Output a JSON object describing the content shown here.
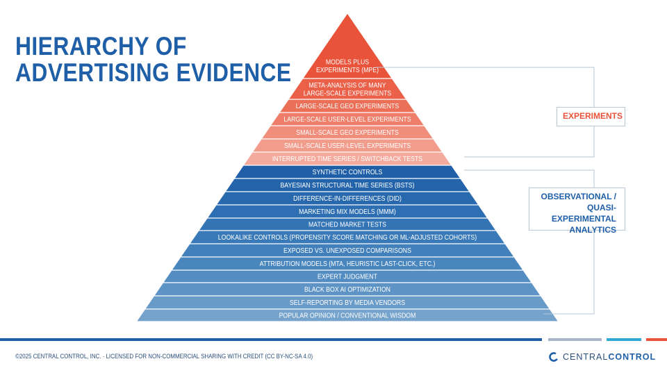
{
  "title": {
    "line1": "HIERARCHY OF",
    "line2": "ADVERTISING EVIDENCE"
  },
  "pyramid": {
    "levels": [
      {
        "label": "MODELS PLUS|EXPERIMENTS (MPE)",
        "color": "#e8533a",
        "group": "experiments"
      },
      {
        "label": "META-ANALYSIS OF MANY|LARGE-SCALE EXPERIMENTS",
        "color": "#ea6048",
        "group": "experiments"
      },
      {
        "label": "LARGE-SCALE GEO EXPERIMENTS",
        "color": "#ec6f58",
        "group": "experiments"
      },
      {
        "label": "LARGE-SCALE USER-LEVEL EXPERIMENTS",
        "color": "#ee7e69",
        "group": "experiments"
      },
      {
        "label": "SMALL-SCALE GEO EXPERIMENTS",
        "color": "#f08d7b",
        "group": "experiments"
      },
      {
        "label": "SMALL-SCALE USER-LEVEL EXPERIMENTS",
        "color": "#f29c8c",
        "group": "experiments"
      },
      {
        "label": "INTERRUPTED TIME SERIES / SWITCHBACK TESTS",
        "color": "#f4ab9e",
        "group": "experiments"
      },
      {
        "label": "SYNTHETIC CONTROLS",
        "color": "#1f5fa8",
        "group": "observational"
      },
      {
        "label": "BAYESIAN STRUCTURAL TIME SERIES (BSTS)",
        "color": "#2364ab",
        "group": "observational"
      },
      {
        "label": "DIFFERENCE-IN-DIFFERENCES (DID)",
        "color": "#2869ae",
        "group": "observational"
      },
      {
        "label": "MARKETING MIX MODELS (MMM)",
        "color": "#2d6fb2",
        "group": "observational"
      },
      {
        "label": "MATCHED MARKET TESTS",
        "color": "#3374b5",
        "group": "observational"
      },
      {
        "label": "LOOKALIKE CONTROLS (PROPENSITY SCORE MATCHING OR ML-ADJUSTED COHORTS)",
        "color": "#3a7ab8",
        "group": "observational"
      },
      {
        "label": "EXPOSED VS. UNEXPOSED COMPARISONS",
        "color": "#4280bb",
        "group": "observational"
      },
      {
        "label": "ATTRIBUTION MODELS (MTA, HEURISTIC LAST-CLICK, ETC.)",
        "color": "#4a86be",
        "group": "observational"
      },
      {
        "label": "EXPERT JUDGMENT",
        "color": "#548dc2",
        "group": "observational"
      },
      {
        "label": "BLACK BOX AI OPTIMIZATION",
        "color": "#5e94c5",
        "group": "observational"
      },
      {
        "label": "SELF-REPORTING BY MEDIA VENDORS",
        "color": "#699bc8",
        "group": "observational"
      },
      {
        "label": "POPULAR OPINION / CONVENTIONAL WISDOM",
        "color": "#75a3cc",
        "group": "observational"
      }
    ]
  },
  "groups": {
    "experiments": {
      "label": "EXPERIMENTS",
      "color": "#e8533a"
    },
    "observational": {
      "line1": "OBSERVATIONAL /",
      "line2": "QUASI-EXPERIMENTAL",
      "line3": "ANALYTICS",
      "color": "#1f5fa8"
    }
  },
  "footer": {
    "license": "©2025 CENTRAL CONTROL, INC. · LICENSED FOR NON-COMMERCIAL SHARING WITH CREDIT (CC BY-NC-SA 4.0)",
    "logo_part1": "CENTRAL",
    "logo_part2": "CONTROL",
    "bar_colors": [
      "#1f5fa8",
      "#a9b4cc",
      "#2fa8d5",
      "#e8533a"
    ]
  }
}
